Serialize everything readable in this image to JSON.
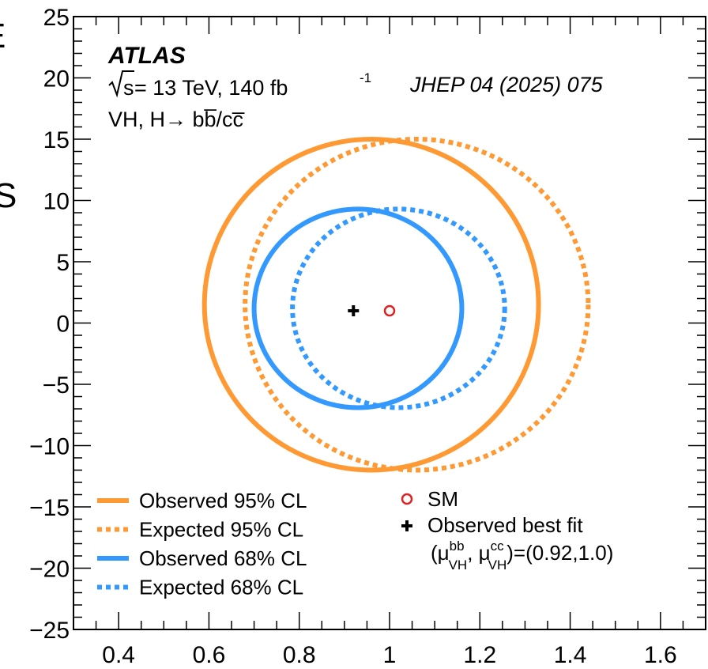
{
  "chart_data": {
    "type": "contour",
    "xlim": [
      0.3,
      1.7
    ],
    "ylim": [
      -25,
      25
    ],
    "x_ticks": [
      "0.4",
      "0.6",
      "0.8",
      "1",
      "1.2",
      "1.4",
      "1.6"
    ],
    "y_ticks": [
      "25",
      "20",
      "15",
      "10",
      "5",
      "0",
      "−5",
      "−10",
      "−15",
      "−20",
      "−25"
    ],
    "labels": {
      "experiment": "ATLAS",
      "energy_prefix": "s",
      "energy_rest": " = 13 TeV, 140 fb",
      "lumi_sup": "-1",
      "process": "VH, H→ bb̅/cc̅",
      "journal": "JHEP 04 (2025) 075",
      "edge_chars": [
        "E",
        "S"
      ]
    },
    "series": [
      {
        "name": "Observed 95% CL",
        "color": "#ff9933",
        "style": "solid",
        "center": [
          0.96,
          1.5
        ],
        "rx": 0.37,
        "ry": 13.5,
        "skew": 0.0
      },
      {
        "name": "Expected 95% CL",
        "color": "#ff9933",
        "style": "dotted",
        "center": [
          1.06,
          1.5
        ],
        "rx": 0.38,
        "ry": 13.5,
        "skew": 0.0
      },
      {
        "name": "Observed 68% CL",
        "color": "#3399ff",
        "style": "solid",
        "center": [
          0.93,
          1.2
        ],
        "rx": 0.23,
        "ry": 8.1,
        "skew": 0.0
      },
      {
        "name": "Expected 68% CL",
        "color": "#3399ff",
        "style": "dotted",
        "center": [
          1.02,
          1.2
        ],
        "rx": 0.235,
        "ry": 8.1,
        "skew": 0.0
      }
    ],
    "points": [
      {
        "name": "SM",
        "x": 1.0,
        "y": 1.0,
        "marker": "open-circle",
        "color": "#dd2222"
      },
      {
        "name": "Observed best fit",
        "x": 0.92,
        "y": 1.0,
        "marker": "plus",
        "color": "#000000"
      }
    ],
    "best_fit_label": {
      "mu": "(μ",
      "bb": "bb",
      "vh": "VH",
      "sep": ", μ",
      "cc": "cc",
      "values": ")=(0.92,1.0)"
    }
  }
}
